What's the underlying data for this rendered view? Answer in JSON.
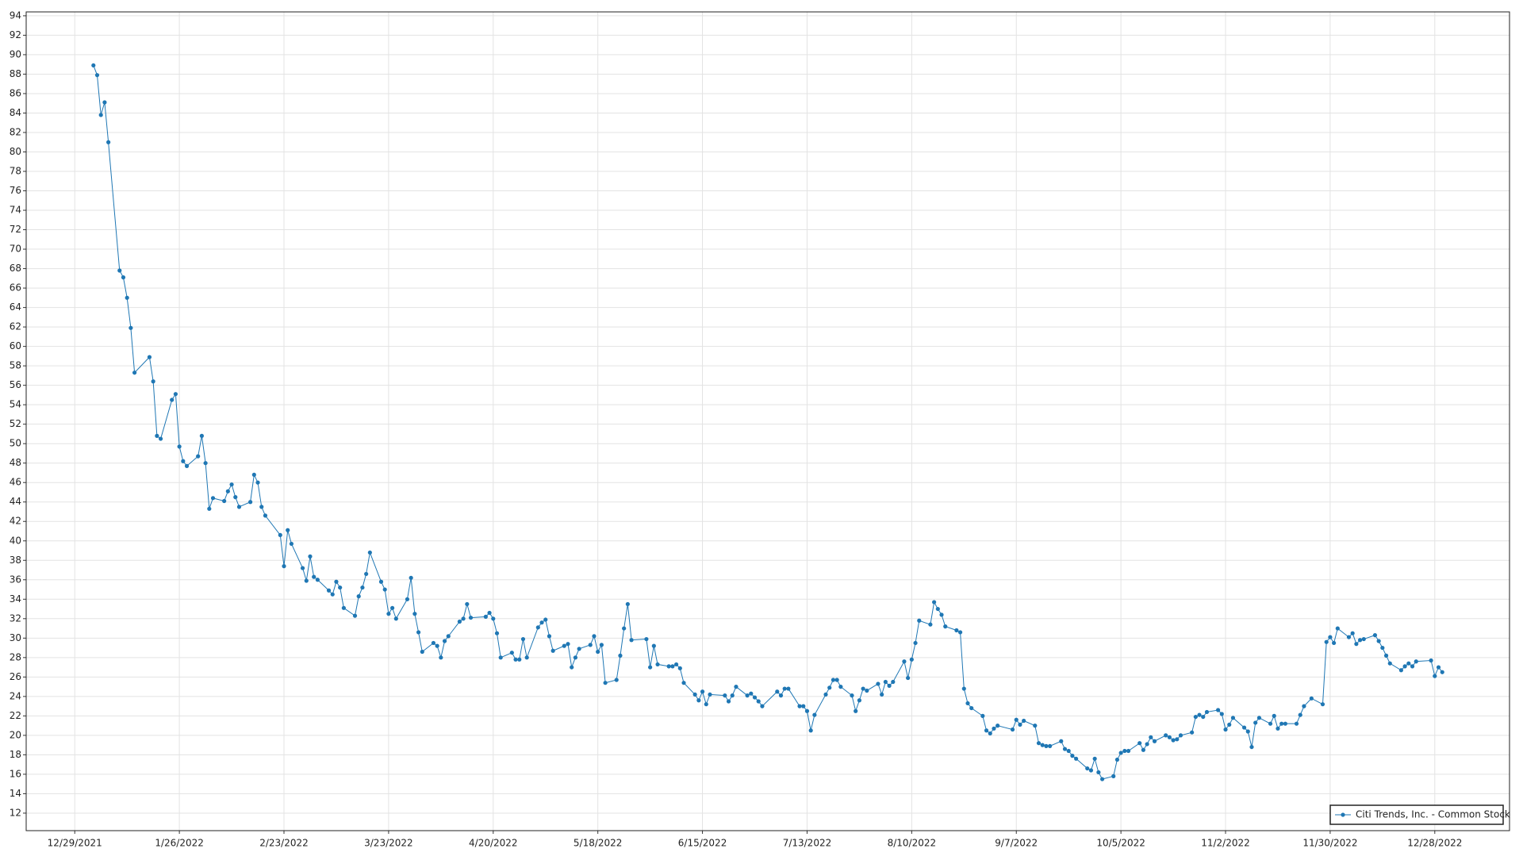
{
  "chart_data": {
    "type": "line",
    "x": [
      "1/3/2022",
      "1/4/2022",
      "1/5/2022",
      "1/6/2022",
      "1/7/2022",
      "1/10/2022",
      "1/11/2022",
      "1/12/2022",
      "1/13/2022",
      "1/14/2022",
      "1/18/2022",
      "1/19/2022",
      "1/20/2022",
      "1/21/2022",
      "1/24/2022",
      "1/25/2022",
      "1/26/2022",
      "1/27/2022",
      "1/28/2022",
      "1/31/2022",
      "2/1/2022",
      "2/2/2022",
      "2/3/2022",
      "2/4/2022",
      "2/7/2022",
      "2/8/2022",
      "2/9/2022",
      "2/10/2022",
      "2/11/2022",
      "2/14/2022",
      "2/15/2022",
      "2/16/2022",
      "2/17/2022",
      "2/18/2022",
      "2/22/2022",
      "2/23/2022",
      "2/24/2022",
      "2/25/2022",
      "2/28/2022",
      "3/1/2022",
      "3/2/2022",
      "3/3/2022",
      "3/4/2022",
      "3/7/2022",
      "3/8/2022",
      "3/9/2022",
      "3/10/2022",
      "3/11/2022",
      "3/14/2022",
      "3/15/2022",
      "3/16/2022",
      "3/17/2022",
      "3/18/2022",
      "3/21/2022",
      "3/22/2022",
      "3/23/2022",
      "3/24/2022",
      "3/25/2022",
      "3/28/2022",
      "3/29/2022",
      "3/30/2022",
      "3/31/2022",
      "4/1/2022",
      "4/4/2022",
      "4/5/2022",
      "4/6/2022",
      "4/7/2022",
      "4/8/2022",
      "4/11/2022",
      "4/12/2022",
      "4/13/2022",
      "4/14/2022",
      "4/18/2022",
      "4/19/2022",
      "4/20/2022",
      "4/21/2022",
      "4/22/2022",
      "4/25/2022",
      "4/26/2022",
      "4/27/2022",
      "4/28/2022",
      "4/29/2022",
      "5/2/2022",
      "5/3/2022",
      "5/4/2022",
      "5/5/2022",
      "5/6/2022",
      "5/9/2022",
      "5/10/2022",
      "5/11/2022",
      "5/12/2022",
      "5/13/2022",
      "5/16/2022",
      "5/17/2022",
      "5/18/2022",
      "5/19/2022",
      "5/20/2022",
      "5/23/2022",
      "5/24/2022",
      "5/25/2022",
      "5/26/2022",
      "5/27/2022",
      "5/31/2022",
      "6/1/2022",
      "6/2/2022",
      "6/3/2022",
      "6/6/2022",
      "6/7/2022",
      "6/8/2022",
      "6/9/2022",
      "6/10/2022",
      "6/13/2022",
      "6/14/2022",
      "6/15/2022",
      "6/16/2022",
      "6/17/2022",
      "6/21/2022",
      "6/22/2022",
      "6/23/2022",
      "6/24/2022",
      "6/27/2022",
      "6/28/2022",
      "6/29/2022",
      "6/30/2022",
      "7/1/2022",
      "7/5/2022",
      "7/6/2022",
      "7/7/2022",
      "7/8/2022",
      "7/11/2022",
      "7/12/2022",
      "7/13/2022",
      "7/14/2022",
      "7/15/2022",
      "7/18/2022",
      "7/19/2022",
      "7/20/2022",
      "7/21/2022",
      "7/22/2022",
      "7/25/2022",
      "7/26/2022",
      "7/27/2022",
      "7/28/2022",
      "7/29/2022",
      "8/1/2022",
      "8/2/2022",
      "8/3/2022",
      "8/4/2022",
      "8/5/2022",
      "8/8/2022",
      "8/9/2022",
      "8/10/2022",
      "8/11/2022",
      "8/12/2022",
      "8/15/2022",
      "8/16/2022",
      "8/17/2022",
      "8/18/2022",
      "8/19/2022",
      "8/22/2022",
      "8/23/2022",
      "8/24/2022",
      "8/25/2022",
      "8/26/2022",
      "8/29/2022",
      "8/30/2022",
      "8/31/2022",
      "9/1/2022",
      "9/2/2022",
      "9/6/2022",
      "9/7/2022",
      "9/8/2022",
      "9/9/2022",
      "9/12/2022",
      "9/13/2022",
      "9/14/2022",
      "9/15/2022",
      "9/16/2022",
      "9/19/2022",
      "9/20/2022",
      "9/21/2022",
      "9/22/2022",
      "9/23/2022",
      "9/26/2022",
      "9/27/2022",
      "9/28/2022",
      "9/29/2022",
      "9/30/2022",
      "10/3/2022",
      "10/4/2022",
      "10/5/2022",
      "10/6/2022",
      "10/7/2022",
      "10/10/2022",
      "10/11/2022",
      "10/12/2022",
      "10/13/2022",
      "10/14/2022",
      "10/17/2022",
      "10/18/2022",
      "10/19/2022",
      "10/20/2022",
      "10/21/2022",
      "10/24/2022",
      "10/25/2022",
      "10/26/2022",
      "10/27/2022",
      "10/28/2022",
      "10/31/2022",
      "11/1/2022",
      "11/2/2022",
      "11/3/2022",
      "11/4/2022",
      "11/7/2022",
      "11/8/2022",
      "11/9/2022",
      "11/10/2022",
      "11/11/2022",
      "11/14/2022",
      "11/15/2022",
      "11/16/2022",
      "11/17/2022",
      "11/18/2022",
      "11/21/2022",
      "11/22/2022",
      "11/23/2022",
      "11/25/2022",
      "11/28/2022",
      "11/29/2022",
      "11/30/2022",
      "12/1/2022",
      "12/2/2022",
      "12/5/2022",
      "12/6/2022",
      "12/7/2022",
      "12/8/2022",
      "12/9/2022",
      "12/12/2022",
      "12/13/2022",
      "12/14/2022",
      "12/15/2022",
      "12/16/2022",
      "12/19/2022",
      "12/20/2022",
      "12/21/2022",
      "12/22/2022",
      "12/23/2022",
      "12/27/2022",
      "12/28/2022",
      "12/29/2022",
      "12/30/2022"
    ],
    "series": [
      {
        "name": "Citi Trends, Inc. - Common Stock",
        "color": "#1f77b4",
        "values": [
          88.9,
          87.9,
          83.8,
          85.1,
          81.0,
          67.8,
          67.1,
          65.0,
          61.9,
          57.3,
          58.9,
          56.4,
          50.8,
          50.5,
          54.5,
          55.1,
          49.7,
          48.2,
          47.7,
          48.7,
          50.8,
          48.0,
          43.3,
          44.4,
          44.1,
          45.1,
          45.8,
          44.5,
          43.5,
          44.0,
          46.8,
          46.0,
          43.5,
          42.6,
          40.6,
          37.4,
          41.1,
          39.7,
          37.2,
          35.9,
          38.4,
          36.3,
          36.0,
          34.9,
          34.5,
          35.8,
          35.2,
          33.1,
          32.3,
          34.3,
          35.2,
          36.6,
          38.8,
          35.8,
          35.0,
          32.5,
          33.1,
          32.0,
          34.0,
          36.2,
          32.5,
          30.6,
          28.6,
          29.5,
          29.2,
          28.0,
          29.7,
          30.2,
          31.7,
          32.0,
          33.5,
          32.1,
          32.2,
          32.6,
          32.0,
          30.5,
          28.0,
          28.5,
          27.8,
          27.8,
          29.9,
          28.0,
          31.1,
          31.6,
          31.9,
          30.2,
          28.7,
          29.2,
          29.4,
          27.0,
          28.0,
          28.9,
          29.3,
          30.2,
          28.6,
          29.3,
          25.4,
          25.7,
          28.2,
          31.0,
          33.5,
          29.8,
          29.9,
          27.0,
          29.2,
          27.3,
          27.1,
          27.1,
          27.3,
          26.9,
          25.4,
          24.2,
          23.6,
          24.5,
          23.2,
          24.2,
          24.1,
          23.5,
          24.1,
          25.0,
          24.1,
          24.3,
          23.9,
          23.5,
          23.0,
          24.5,
          24.1,
          24.8,
          24.8,
          23.0,
          23.0,
          22.5,
          20.5,
          22.1,
          24.2,
          24.9,
          25.7,
          25.7,
          25.0,
          24.1,
          22.5,
          23.6,
          24.8,
          24.6,
          25.3,
          24.2,
          25.5,
          25.1,
          25.5,
          27.6,
          25.9,
          27.8,
          29.5,
          31.8,
          31.4,
          33.7,
          33.0,
          32.4,
          31.2,
          30.8,
          30.6,
          24.8,
          23.3,
          22.8,
          22.0,
          20.5,
          20.2,
          20.7,
          21.0,
          20.6,
          21.6,
          21.1,
          21.5,
          21.0,
          19.2,
          19.0,
          18.9,
          18.9,
          19.4,
          18.6,
          18.4,
          17.9,
          17.6,
          16.6,
          16.4,
          17.6,
          16.2,
          15.5,
          15.8,
          17.5,
          18.2,
          18.4,
          18.4,
          19.2,
          18.5,
          19.1,
          19.8,
          19.4,
          20.0,
          19.8,
          19.5,
          19.6,
          20.0,
          20.3,
          21.9,
          22.1,
          21.9,
          22.4,
          22.6,
          22.2,
          20.6,
          21.1,
          21.8,
          20.8,
          20.4,
          18.8,
          21.3,
          21.8,
          21.2,
          22.0,
          20.7,
          21.2,
          21.2,
          21.2,
          22.1,
          23.0,
          23.8,
          23.2,
          29.6,
          30.1,
          29.5,
          31.0,
          30.1,
          30.5,
          29.4,
          29.8,
          29.9,
          30.3,
          29.7,
          29.0,
          28.2,
          27.4,
          26.7,
          27.1,
          27.4,
          27.1,
          27.6,
          27.7,
          26.1,
          27.0,
          26.5
        ]
      }
    ],
    "xlim": [
      "12/16/2021",
      "1/17/2023"
    ],
    "xticks": [
      "12/29/2021",
      "1/26/2022",
      "2/23/2022",
      "3/23/2022",
      "4/20/2022",
      "5/18/2022",
      "6/15/2022",
      "7/13/2022",
      "8/10/2022",
      "9/7/2022",
      "10/5/2022",
      "11/2/2022",
      "11/30/2022",
      "12/28/2022"
    ],
    "ylim": [
      10.2,
      94.4
    ],
    "yticks": [
      12,
      14,
      16,
      18,
      20,
      22,
      24,
      26,
      28,
      30,
      32,
      34,
      36,
      38,
      40,
      42,
      44,
      46,
      48,
      50,
      52,
      54,
      56,
      58,
      60,
      62,
      64,
      66,
      68,
      70,
      72,
      74,
      76,
      78,
      80,
      82,
      84,
      86,
      88,
      90,
      92,
      94
    ],
    "grid": true,
    "markers": true,
    "legend": "lower right"
  }
}
